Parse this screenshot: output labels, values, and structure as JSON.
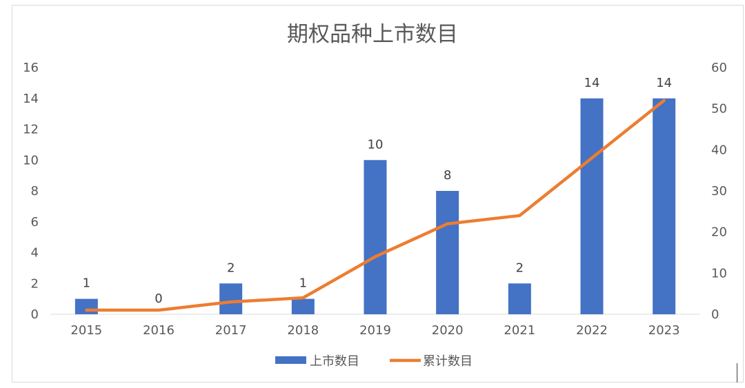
{
  "chart_data": {
    "type": "bar",
    "title": "期权品种上市数目",
    "categories": [
      "2015",
      "2016",
      "2017",
      "2018",
      "2019",
      "2020",
      "2021",
      "2022",
      "2023"
    ],
    "series": [
      {
        "name": "上市数目",
        "type": "bar",
        "axis": "left",
        "color": "#4472C4",
        "values": [
          1,
          0,
          2,
          1,
          10,
          8,
          2,
          14,
          14
        ]
      },
      {
        "name": "累计数目",
        "type": "line",
        "axis": "right",
        "color": "#ED7D31",
        "values": [
          1,
          1,
          3,
          4,
          14,
          22,
          24,
          38,
          52
        ]
      }
    ],
    "y_left": {
      "min": 0,
      "max": 16,
      "ticks": [
        0,
        2,
        4,
        6,
        8,
        10,
        12,
        14,
        16
      ]
    },
    "y_right": {
      "min": 0,
      "max": 60,
      "ticks": [
        0,
        10,
        20,
        30,
        40,
        50,
        60
      ]
    },
    "bar_data_labels": true,
    "grid": false,
    "legend_position": "bottom"
  }
}
